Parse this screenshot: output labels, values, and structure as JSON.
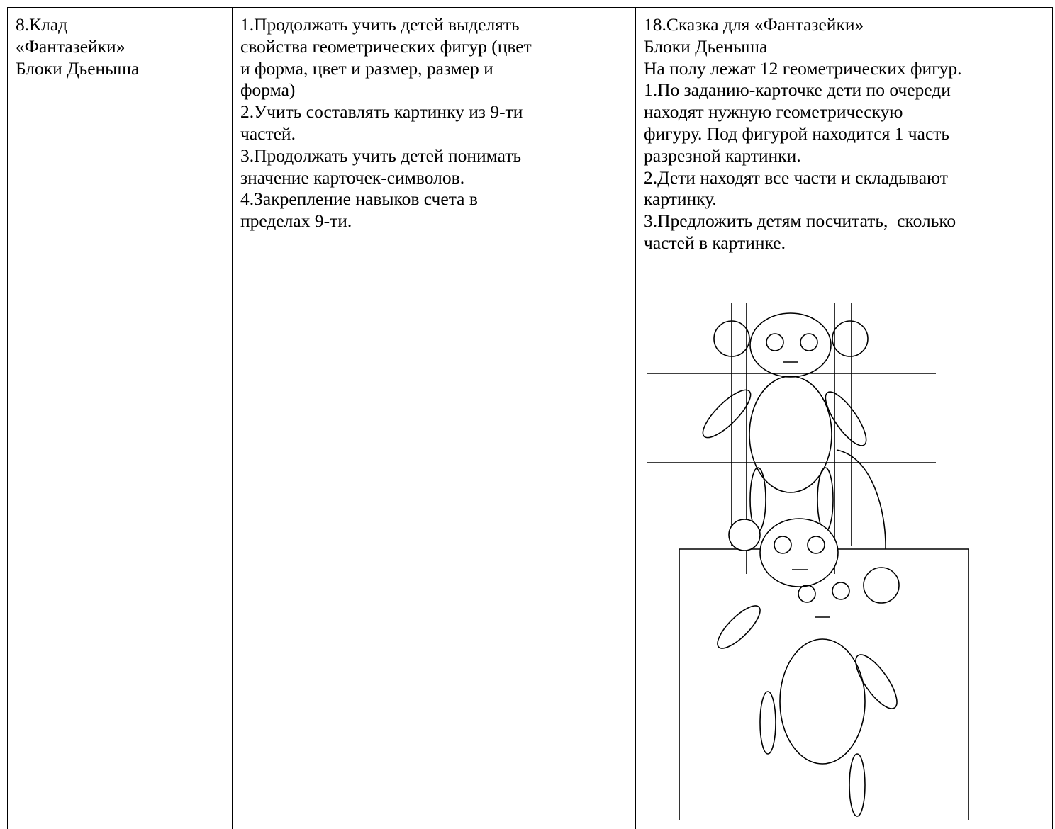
{
  "table": {
    "rows": [
      [
        [
          "8.Клад",
          "«Фантазейки»",
          "Блоки Дьеныша"
        ],
        [
          "1.Продолжать учить детей выделять",
          "свойства геометрических фигур (цвет",
          "и форма, цвет и размер, размер и",
          "форма)",
          "2.Учить составлять картинку из 9-ти",
          "частей.",
          "3.Продолжать учить детей понимать",
          "значение карточек-символов.",
          "4.Закрепление навыков счета в",
          "пределах 9-ти."
        ],
        [
          "18.Сказка для «Фантазейки»",
          "Блоки Дьеныша",
          "На полу лежат 12 геометрических фигур.",
          "1.По заданию-карточке дети по очереди",
          "находят нужную геометрическую",
          "фигуру. Под фигурой находится 1 часть",
          "разрезной картинки.",
          "2.Дети находят все части и складывают",
          "картинку.",
          "3.Предложить детям посчитать,  сколько",
          "частей в картинке."
        ]
      ]
    ]
  }
}
